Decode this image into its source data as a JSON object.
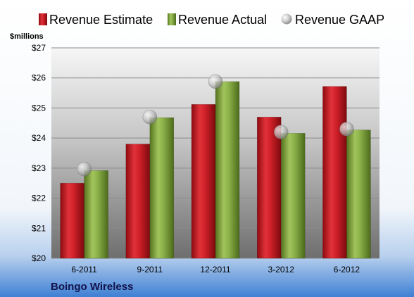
{
  "chart_data": {
    "type": "bar",
    "categories": [
      "6-2011",
      "9-2011",
      "12-2011",
      "3-2012",
      "6-2012"
    ],
    "series": [
      {
        "name": "Revenue Estimate",
        "values": [
          22.5,
          23.8,
          25.12,
          24.7,
          25.72
        ],
        "kind": "bar",
        "color": "#c8161d"
      },
      {
        "name": "Revenue Actual",
        "values": [
          22.92,
          24.68,
          25.88,
          24.16,
          24.27
        ],
        "kind": "bar",
        "color": "#7fa33d"
      },
      {
        "name": "Revenue GAAP",
        "values": [
          22.97,
          24.7,
          25.88,
          24.2,
          24.3
        ],
        "kind": "marker",
        "color": "#b8b8b8"
      }
    ],
    "ylabel": "$millions",
    "ylim": [
      20,
      27
    ],
    "yticks": [
      "$20",
      "$21",
      "$22",
      "$23",
      "$24",
      "$25",
      "$26",
      "$27"
    ],
    "grid": true,
    "legend_position": "top",
    "footer": "Boingo Wireless"
  }
}
